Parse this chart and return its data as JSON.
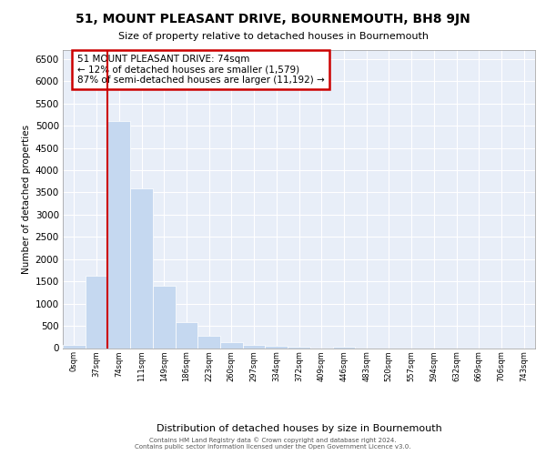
{
  "title": "51, MOUNT PLEASANT DRIVE, BOURNEMOUTH, BH8 9JN",
  "subtitle": "Size of property relative to detached houses in Bournemouth",
  "xlabel": "Distribution of detached houses by size in Bournemouth",
  "ylabel": "Number of detached properties",
  "bar_color": "#c5d8f0",
  "bar_edge_color": "#c5d8f0",
  "vline_color": "#cc0000",
  "background_color": "#e8eef8",
  "grid_color": "#ffffff",
  "annotation_text": "51 MOUNT PLEASANT DRIVE: 74sqm\n← 12% of detached houses are smaller (1,579)\n87% of semi-detached houses are larger (11,192) →",
  "annotation_edge_color": "#cc0000",
  "annotation_bg": "#ffffff",
  "categories": [
    "0sqm",
    "37sqm",
    "74sqm",
    "111sqm",
    "149sqm",
    "186sqm",
    "223sqm",
    "260sqm",
    "297sqm",
    "334sqm",
    "372sqm",
    "409sqm",
    "446sqm",
    "483sqm",
    "520sqm",
    "557sqm",
    "594sqm",
    "632sqm",
    "669sqm",
    "706sqm",
    "743sqm"
  ],
  "values": [
    75,
    1625,
    5100,
    3600,
    1400,
    575,
    275,
    130,
    75,
    50,
    40,
    0,
    40,
    0,
    0,
    0,
    0,
    0,
    0,
    0,
    0
  ],
  "ylim": [
    0,
    6700
  ],
  "yticks": [
    0,
    500,
    1000,
    1500,
    2000,
    2500,
    3000,
    3500,
    4000,
    4500,
    5000,
    5500,
    6000,
    6500
  ],
  "vline_index": 2,
  "footer_line1": "Contains HM Land Registry data © Crown copyright and database right 2024.",
  "footer_line2": "Contains public sector information licensed under the Open Government Licence v3.0."
}
